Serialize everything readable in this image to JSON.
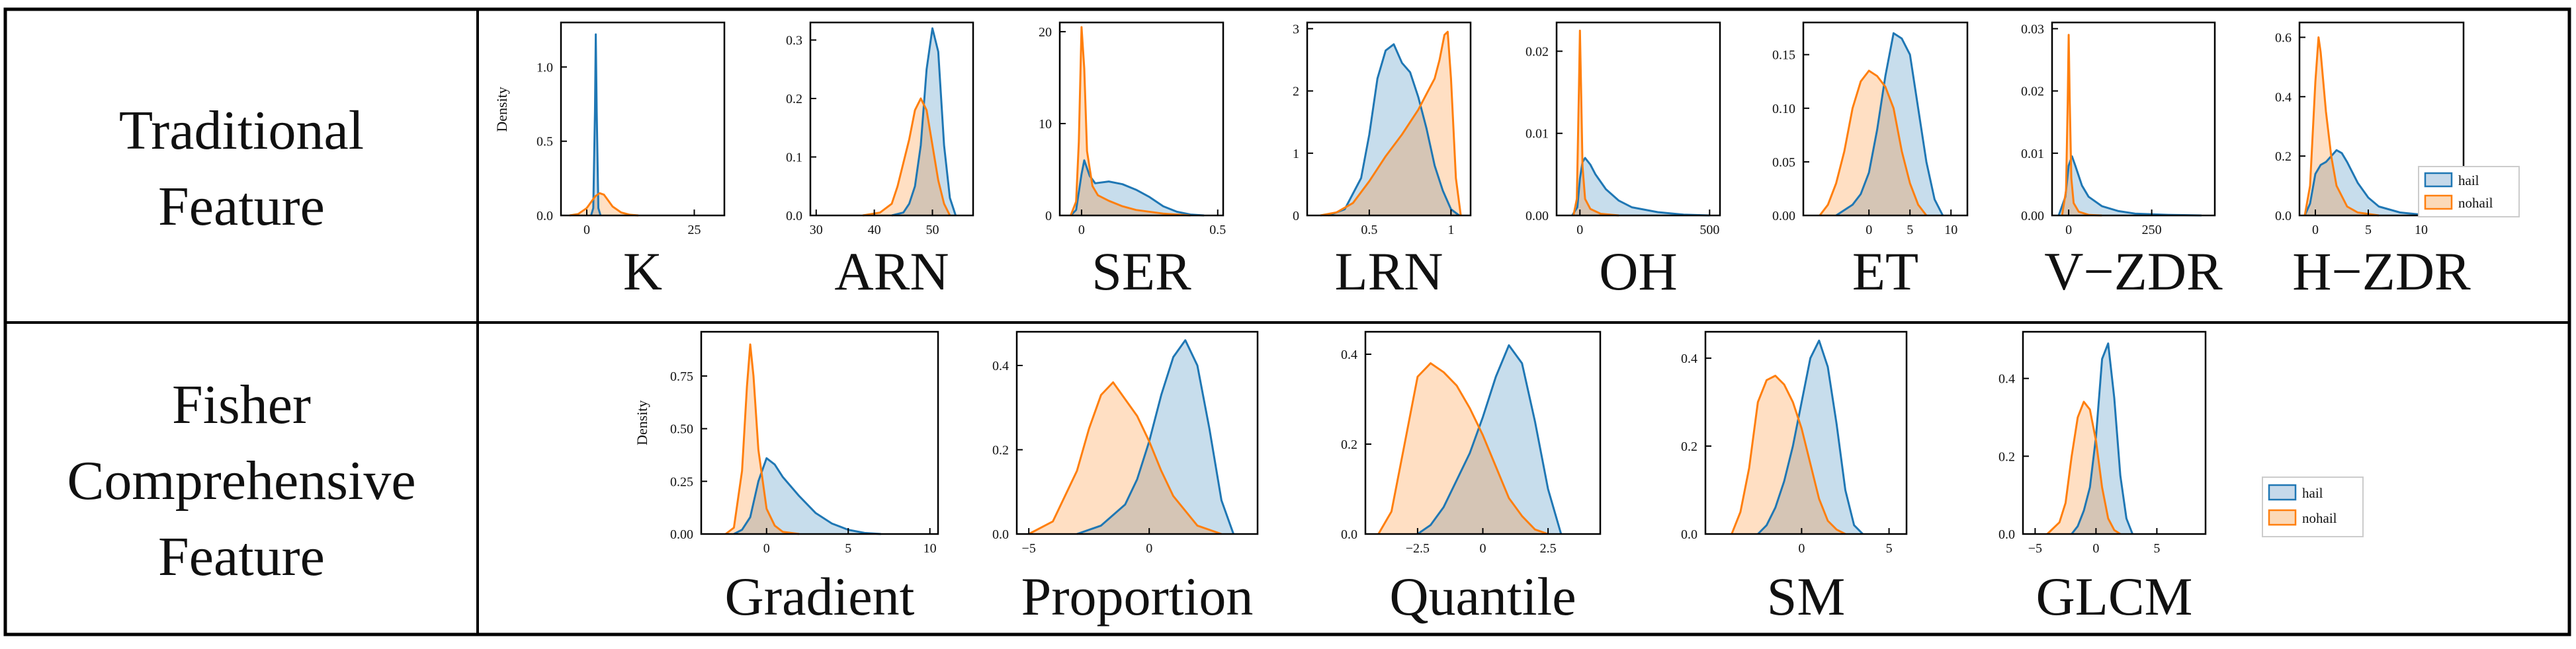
{
  "colors": {
    "hail": "#1f77b4",
    "nohail": "#ff7f0e",
    "hail_fill": "#c6d9ea",
    "nohail_fill": "#fbd9b8"
  },
  "rows": [
    {
      "label_lines": [
        "Traditional",
        "Feature"
      ],
      "ylabel": "Density",
      "legend": [
        "hail",
        "nohail"
      ]
    },
    {
      "label_lines": [
        "Fisher",
        "Comprehensive",
        "Feature"
      ],
      "ylabel": "Density",
      "legend": [
        "hail",
        "nohail"
      ]
    }
  ],
  "chart_data": [
    {
      "type": "area",
      "row": 0,
      "title": "K",
      "xlim": [
        -6,
        32
      ],
      "ylim": [
        0,
        1.3
      ],
      "xticks": [
        0,
        25
      ],
      "yticks": [
        0.0,
        0.5,
        1.0
      ],
      "ytick_labels": [
        "0.0",
        "0.5",
        "1.0"
      ],
      "series": [
        {
          "name": "hail",
          "x": [
            1.0,
            1.5,
            1.9,
            2.1,
            2.3,
            2.7,
            3.2
          ],
          "y": [
            0,
            0.05,
            0.7,
            1.22,
            0.7,
            0.05,
            0
          ]
        },
        {
          "name": "nohail",
          "x": [
            -4,
            -2,
            0,
            1,
            2,
            3,
            4,
            5,
            6,
            8,
            10,
            12
          ],
          "y": [
            0,
            0.01,
            0.05,
            0.09,
            0.13,
            0.15,
            0.14,
            0.1,
            0.06,
            0.02,
            0.005,
            0
          ]
        }
      ]
    },
    {
      "type": "area",
      "row": 0,
      "title": "ARN",
      "xlim": [
        29,
        57
      ],
      "ylim": [
        0,
        0.33
      ],
      "xticks": [
        30,
        40,
        50
      ],
      "yticks": [
        0.0,
        0.1,
        0.2,
        0.3
      ],
      "ytick_labels": [
        "0.0",
        "0.1",
        "0.2",
        "0.3"
      ],
      "series": [
        {
          "name": "hail",
          "x": [
            43,
            45,
            46,
            47,
            48,
            49,
            50,
            51,
            52,
            53,
            54
          ],
          "y": [
            0,
            0.005,
            0.02,
            0.05,
            0.12,
            0.25,
            0.32,
            0.28,
            0.12,
            0.03,
            0
          ]
        },
        {
          "name": "nohail",
          "x": [
            38,
            41,
            43,
            44,
            45,
            46,
            47,
            48,
            49,
            50,
            51,
            52,
            53
          ],
          "y": [
            0,
            0.005,
            0.02,
            0.05,
            0.09,
            0.13,
            0.18,
            0.2,
            0.18,
            0.12,
            0.06,
            0.02,
            0
          ]
        }
      ]
    },
    {
      "type": "area",
      "row": 0,
      "title": "SER",
      "xlim": [
        -0.08,
        0.52
      ],
      "ylim": [
        0,
        21
      ],
      "xticks": [
        0.0,
        0.5
      ],
      "yticks": [
        0,
        10,
        20
      ],
      "ytick_labels": [
        "0",
        "10",
        "20"
      ],
      "series": [
        {
          "name": "hail",
          "x": [
            -0.04,
            -0.02,
            0.0,
            0.01,
            0.03,
            0.05,
            0.1,
            0.15,
            0.2,
            0.25,
            0.3,
            0.35,
            0.4,
            0.45
          ],
          "y": [
            0,
            0.6,
            4.5,
            6.0,
            4.3,
            3.5,
            3.7,
            3.4,
            2.8,
            2.0,
            1.0,
            0.4,
            0.1,
            0
          ]
        },
        {
          "name": "nohail",
          "x": [
            -0.04,
            -0.02,
            -0.01,
            0.0,
            0.01,
            0.02,
            0.04,
            0.06,
            0.1,
            0.15,
            0.2,
            0.3,
            0.4
          ],
          "y": [
            0,
            1.5,
            8.0,
            20.5,
            16.0,
            7.0,
            3.2,
            2.2,
            1.6,
            1.0,
            0.6,
            0.2,
            0
          ]
        }
      ]
    },
    {
      "type": "area",
      "row": 0,
      "title": "LRN",
      "xlim": [
        0.12,
        1.12
      ],
      "ylim": [
        0,
        3.1
      ],
      "xticks": [
        0.5,
        1.0
      ],
      "yticks": [
        0,
        1,
        2,
        3
      ],
      "ytick_labels": [
        "0",
        "1",
        "2",
        "3"
      ],
      "series": [
        {
          "name": "hail",
          "x": [
            0.25,
            0.35,
            0.45,
            0.5,
            0.55,
            0.6,
            0.65,
            0.7,
            0.75,
            0.8,
            0.85,
            0.9,
            0.95,
            1.0,
            1.05
          ],
          "y": [
            0,
            0.1,
            0.6,
            1.3,
            2.2,
            2.65,
            2.75,
            2.45,
            2.3,
            1.9,
            1.4,
            0.8,
            0.4,
            0.1,
            0
          ]
        },
        {
          "name": "nohail",
          "x": [
            0.2,
            0.3,
            0.4,
            0.5,
            0.6,
            0.7,
            0.8,
            0.85,
            0.9,
            0.93,
            0.96,
            0.98,
            1.0,
            1.03,
            1.06
          ],
          "y": [
            0,
            0.05,
            0.2,
            0.55,
            0.95,
            1.3,
            1.7,
            1.95,
            2.2,
            2.5,
            2.9,
            2.95,
            2.2,
            0.6,
            0
          ]
        }
      ]
    },
    {
      "type": "area",
      "row": 0,
      "title": "OH",
      "xlim": [
        -90,
        540
      ],
      "ylim": [
        0,
        0.0235
      ],
      "xticks": [
        0,
        500
      ],
      "yticks": [
        0.0,
        0.01,
        0.02
      ],
      "ytick_labels": [
        "0.00",
        "0.01",
        "0.02"
      ],
      "series": [
        {
          "name": "hail",
          "x": [
            -30,
            -10,
            0,
            10,
            20,
            40,
            60,
            100,
            150,
            200,
            300,
            400,
            500
          ],
          "y": [
            0,
            0.001,
            0.0045,
            0.0065,
            0.007,
            0.0062,
            0.005,
            0.0032,
            0.0018,
            0.001,
            0.0004,
            0.0001,
            0
          ]
        },
        {
          "name": "nohail",
          "x": [
            -25,
            -12,
            -4,
            0,
            4,
            10,
            20,
            40,
            80,
            150
          ],
          "y": [
            0,
            0.002,
            0.015,
            0.0225,
            0.016,
            0.006,
            0.002,
            0.0008,
            0.0002,
            0
          ]
        }
      ]
    },
    {
      "type": "area",
      "row": 0,
      "title": "ET",
      "xlim": [
        -8,
        12
      ],
      "ylim": [
        0,
        0.18
      ],
      "xticks": [
        0,
        5,
        10
      ],
      "yticks": [
        0.0,
        0.05,
        0.1,
        0.15
      ],
      "ytick_labels": [
        "0.00",
        "0.05",
        "0.10",
        "0.15"
      ],
      "series": [
        {
          "name": "hail",
          "x": [
            -4,
            -2,
            -1,
            0,
            1,
            2,
            3,
            4,
            5,
            6,
            7,
            8,
            9
          ],
          "y": [
            0,
            0.01,
            0.02,
            0.04,
            0.08,
            0.13,
            0.17,
            0.165,
            0.15,
            0.1,
            0.05,
            0.015,
            0
          ]
        },
        {
          "name": "nohail",
          "x": [
            -6,
            -5,
            -4,
            -3,
            -2,
            -1,
            0,
            1,
            2,
            3,
            4,
            5,
            6,
            7
          ],
          "y": [
            0,
            0.01,
            0.03,
            0.06,
            0.1,
            0.125,
            0.135,
            0.13,
            0.12,
            0.1,
            0.06,
            0.03,
            0.01,
            0
          ]
        }
      ]
    },
    {
      "type": "area",
      "row": 0,
      "title": "V−ZDR",
      "xlim": [
        -50,
        440
      ],
      "ylim": [
        0,
        0.031
      ],
      "xticks": [
        0,
        250
      ],
      "yticks": [
        0.0,
        0.01,
        0.02,
        0.03
      ],
      "ytick_labels": [
        "0.00",
        "0.01",
        "0.02",
        "0.03"
      ],
      "series": [
        {
          "name": "hail",
          "x": [
            -30,
            -10,
            0,
            10,
            20,
            40,
            60,
            100,
            150,
            200,
            300,
            400
          ],
          "y": [
            0,
            0.003,
            0.008,
            0.0095,
            0.008,
            0.0048,
            0.003,
            0.0015,
            0.0007,
            0.0003,
            0.0001,
            0
          ]
        },
        {
          "name": "nohail",
          "x": [
            -20,
            -8,
            -3,
            0,
            3,
            8,
            15,
            30,
            60,
            100
          ],
          "y": [
            0,
            0.004,
            0.018,
            0.029,
            0.019,
            0.006,
            0.002,
            0.0006,
            0.0001,
            0
          ]
        }
      ]
    },
    {
      "type": "area",
      "row": 0,
      "title": "H−ZDR",
      "xlim": [
        -1.5,
        14
      ],
      "ylim": [
        0,
        0.65
      ],
      "xticks": [
        0,
        5,
        10
      ],
      "yticks": [
        0.0,
        0.2,
        0.4,
        0.6
      ],
      "ytick_labels": [
        "0.0",
        "0.2",
        "0.4",
        "0.6"
      ],
      "series": [
        {
          "name": "hail",
          "x": [
            -1,
            -0.5,
            0,
            0.5,
            1,
            1.5,
            2,
            2.5,
            3,
            4,
            5,
            6,
            8,
            10,
            12
          ],
          "y": [
            0,
            0.04,
            0.14,
            0.17,
            0.18,
            0.2,
            0.22,
            0.21,
            0.18,
            0.11,
            0.06,
            0.03,
            0.01,
            0.003,
            0
          ]
        },
        {
          "name": "nohail",
          "x": [
            -1,
            -0.5,
            0,
            0.3,
            0.5,
            1,
            1.5,
            2,
            3,
            4,
            6
          ],
          "y": [
            0,
            0.1,
            0.45,
            0.6,
            0.55,
            0.35,
            0.2,
            0.1,
            0.03,
            0.01,
            0
          ]
        }
      ]
    },
    {
      "type": "area",
      "row": 1,
      "title": "Gradient",
      "xlim": [
        -4,
        10.5
      ],
      "ylim": [
        0,
        0.96
      ],
      "xticks": [
        0,
        5,
        10
      ],
      "yticks": [
        0.0,
        0.25,
        0.5,
        0.75
      ],
      "ytick_labels": [
        "0.00",
        "0.25",
        "0.50",
        "0.75"
      ],
      "series": [
        {
          "name": "hail",
          "x": [
            -2,
            -1.5,
            -1,
            -0.5,
            0,
            0.5,
            1,
            2,
            3,
            4,
            5,
            6,
            7
          ],
          "y": [
            0,
            0.02,
            0.08,
            0.25,
            0.36,
            0.33,
            0.27,
            0.18,
            0.1,
            0.05,
            0.02,
            0.005,
            0
          ]
        },
        {
          "name": "nohail",
          "x": [
            -2.5,
            -2,
            -1.5,
            -1.2,
            -1,
            -0.8,
            -0.5,
            0,
            0.5,
            1,
            2
          ],
          "y": [
            0,
            0.03,
            0.3,
            0.7,
            0.9,
            0.75,
            0.4,
            0.12,
            0.04,
            0.01,
            0
          ]
        }
      ]
    },
    {
      "type": "area",
      "row": 1,
      "title": "Proportion",
      "xlim": [
        -5.5,
        4.5
      ],
      "ylim": [
        0,
        0.48
      ],
      "xticks": [
        -5,
        0
      ],
      "yticks": [
        0.0,
        0.2,
        0.4
      ],
      "ytick_labels": [
        "0.0",
        "0.2",
        "0.4"
      ],
      "series": [
        {
          "name": "hail",
          "x": [
            -3,
            -2,
            -1,
            -0.5,
            0,
            0.5,
            1,
            1.5,
            2,
            2.5,
            3,
            3.5
          ],
          "y": [
            0,
            0.02,
            0.07,
            0.13,
            0.22,
            0.33,
            0.42,
            0.46,
            0.4,
            0.25,
            0.08,
            0
          ]
        },
        {
          "name": "nohail",
          "x": [
            -5,
            -4,
            -3,
            -2.5,
            -2,
            -1.5,
            -1,
            -0.5,
            0,
            0.5,
            1,
            2,
            3
          ],
          "y": [
            0,
            0.03,
            0.15,
            0.25,
            0.33,
            0.36,
            0.32,
            0.28,
            0.22,
            0.15,
            0.09,
            0.02,
            0
          ]
        }
      ]
    },
    {
      "type": "area",
      "row": 1,
      "title": "Quantile",
      "xlim": [
        -4.5,
        4.5
      ],
      "ylim": [
        0,
        0.45
      ],
      "xticks": [
        -2.5,
        0.0,
        2.5
      ],
      "yticks": [
        0.0,
        0.2,
        0.4
      ],
      "ytick_labels": [
        "0.0",
        "0.2",
        "0.4"
      ],
      "series": [
        {
          "name": "hail",
          "x": [
            -2.5,
            -2,
            -1.5,
            -1,
            -0.5,
            0,
            0.5,
            1,
            1.5,
            2,
            2.5,
            3
          ],
          "y": [
            0,
            0.02,
            0.06,
            0.12,
            0.18,
            0.26,
            0.35,
            0.42,
            0.38,
            0.25,
            0.1,
            0
          ]
        },
        {
          "name": "nohail",
          "x": [
            -4,
            -3.5,
            -3,
            -2.5,
            -2,
            -1.5,
            -1,
            -0.5,
            0,
            0.5,
            1,
            1.5,
            2,
            2.5
          ],
          "y": [
            0,
            0.05,
            0.2,
            0.35,
            0.38,
            0.36,
            0.33,
            0.28,
            0.22,
            0.15,
            0.08,
            0.04,
            0.01,
            0
          ]
        }
      ]
    },
    {
      "type": "area",
      "row": 1,
      "title": "SM",
      "xlim": [
        -5.5,
        6
      ],
      "ylim": [
        0,
        0.46
      ],
      "xticks": [
        0,
        5
      ],
      "yticks": [
        0.0,
        0.2,
        0.4
      ],
      "ytick_labels": [
        "0.0",
        "0.2",
        "0.4"
      ],
      "series": [
        {
          "name": "hail",
          "x": [
            -2.5,
            -2,
            -1.5,
            -1,
            -0.5,
            0,
            0.5,
            1,
            1.5,
            2,
            2.5,
            3,
            3.5
          ],
          "y": [
            0,
            0.02,
            0.06,
            0.12,
            0.2,
            0.3,
            0.4,
            0.44,
            0.38,
            0.25,
            0.1,
            0.02,
            0
          ]
        },
        {
          "name": "nohail",
          "x": [
            -4,
            -3.5,
            -3,
            -2.5,
            -2,
            -1.5,
            -1,
            -0.5,
            0,
            0.5,
            1,
            1.5,
            2,
            2.5
          ],
          "y": [
            0,
            0.05,
            0.15,
            0.3,
            0.35,
            0.36,
            0.34,
            0.3,
            0.24,
            0.16,
            0.08,
            0.03,
            0.01,
            0
          ]
        }
      ]
    },
    {
      "type": "area",
      "row": 1,
      "title": "GLCM",
      "xlim": [
        -6,
        9
      ],
      "ylim": [
        0,
        0.52
      ],
      "xticks": [
        -5,
        0,
        5
      ],
      "yticks": [
        0.0,
        0.2,
        0.4
      ],
      "ytick_labels": [
        "0.0",
        "0.2",
        "0.4"
      ],
      "series": [
        {
          "name": "hail",
          "x": [
            -2,
            -1.5,
            -1,
            -0.5,
            0,
            0.5,
            1,
            1.5,
            2,
            2.5,
            3
          ],
          "y": [
            0,
            0.02,
            0.06,
            0.12,
            0.25,
            0.45,
            0.49,
            0.35,
            0.15,
            0.04,
            0
          ]
        },
        {
          "name": "nohail",
          "x": [
            -4,
            -3,
            -2.5,
            -2,
            -1.5,
            -1,
            -0.5,
            0,
            0.5,
            1,
            1.5,
            2
          ],
          "y": [
            0,
            0.03,
            0.08,
            0.2,
            0.3,
            0.34,
            0.32,
            0.24,
            0.12,
            0.04,
            0.01,
            0
          ]
        }
      ]
    }
  ]
}
